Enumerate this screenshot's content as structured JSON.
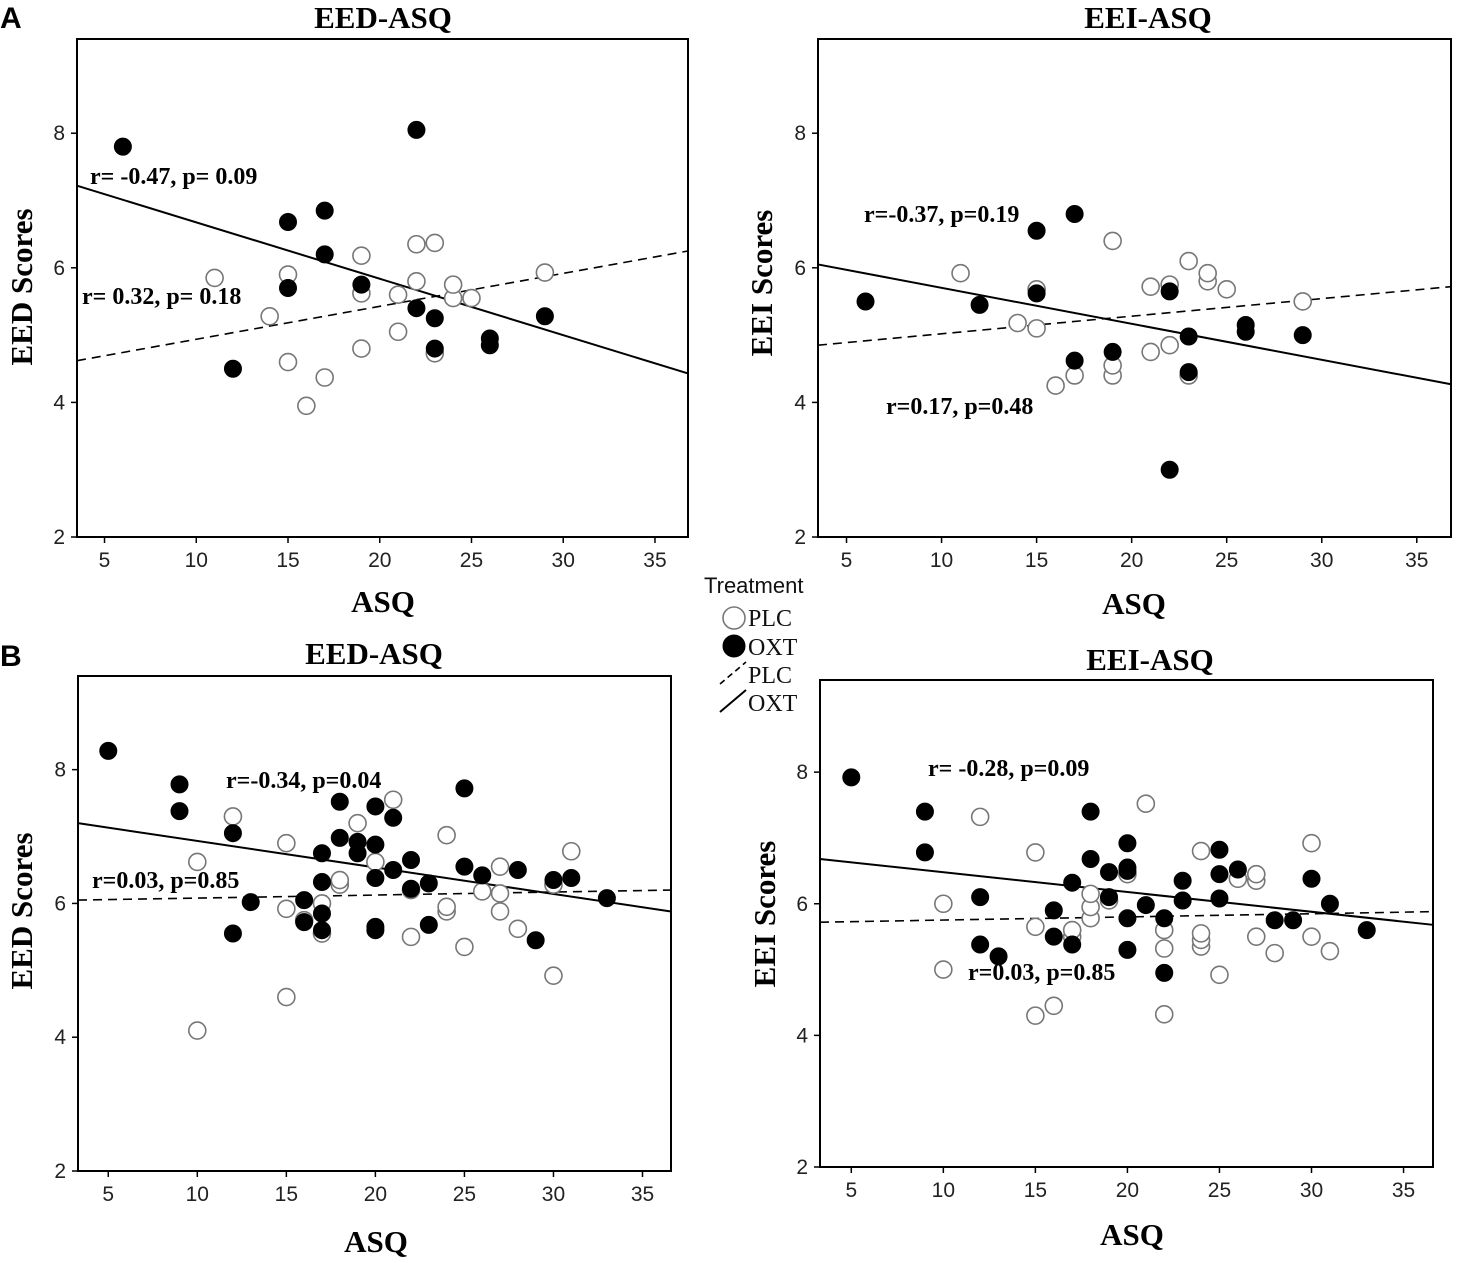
{
  "legend": {
    "title": "Treatment",
    "items": [
      {
        "label": "PLC",
        "kind": "open-circle"
      },
      {
        "label": "OXT",
        "kind": "filled-circle"
      },
      {
        "label": "PLC",
        "kind": "dashed-line"
      },
      {
        "label": "OXT",
        "kind": "solid-line"
      }
    ]
  },
  "colors": {
    "plc_fill": "#ffffff",
    "plc_stroke": "#777777",
    "oxt_fill": "#000000",
    "line": "#000000"
  },
  "chart_data": [
    {
      "id": "A-left",
      "panel_letter": "A",
      "type": "scatter",
      "title": "EED-ASQ",
      "xlabel": "ASQ",
      "ylabel": "EED Scores",
      "xlim": [
        3.5,
        36.8
      ],
      "ylim": [
        2,
        9.4
      ],
      "xticks": [
        5,
        10,
        15,
        20,
        25,
        30,
        35
      ],
      "yticks": [
        2,
        4,
        6,
        8
      ],
      "series": [
        {
          "name": "PLC",
          "points": [
            [
              11,
              5.85
            ],
            [
              14,
              5.28
            ],
            [
              15,
              4.6
            ],
            [
              15,
              5.9
            ],
            [
              16,
              3.95
            ],
            [
              17,
              4.37
            ],
            [
              19,
              4.8
            ],
            [
              19,
              5.62
            ],
            [
              19,
              6.18
            ],
            [
              21,
              5.05
            ],
            [
              21,
              5.6
            ],
            [
              22,
              5.8
            ],
            [
              22,
              6.35
            ],
            [
              23,
              4.73
            ],
            [
              23,
              6.37
            ],
            [
              24,
              5.55
            ],
            [
              24,
              5.75
            ],
            [
              25,
              5.55
            ],
            [
              29,
              5.93
            ]
          ]
        },
        {
          "name": "OXT",
          "points": [
            [
              6,
              7.8
            ],
            [
              12,
              4.5
            ],
            [
              15,
              5.7
            ],
            [
              15,
              6.68
            ],
            [
              17,
              6.2
            ],
            [
              17,
              6.85
            ],
            [
              19,
              5.75
            ],
            [
              22,
              5.4
            ],
            [
              22,
              8.05
            ],
            [
              23,
              5.25
            ],
            [
              23,
              4.8
            ],
            [
              26,
              4.85
            ],
            [
              26,
              4.95
            ],
            [
              29,
              5.28
            ]
          ]
        }
      ],
      "fits": [
        {
          "name": "OXT",
          "style": "solid",
          "x": [
            3.5,
            36.8
          ],
          "y": [
            7.22,
            4.43
          ]
        },
        {
          "name": "PLC",
          "style": "dashed",
          "x": [
            3.5,
            36.8
          ],
          "y": [
            4.62,
            6.25
          ]
        }
      ],
      "annotations": [
        "r= -0.47, p= 0.09",
        "r= 0.32, p= 0.18"
      ]
    },
    {
      "id": "A-right",
      "panel_letter": "",
      "type": "scatter",
      "title": "EEI-ASQ",
      "xlabel": "ASQ",
      "ylabel": "EEI Scores",
      "xlim": [
        3.5,
        36.8
      ],
      "ylim": [
        2,
        9.4
      ],
      "xticks": [
        5,
        10,
        15,
        20,
        25,
        30,
        35
      ],
      "yticks": [
        2,
        4,
        6,
        8
      ],
      "series": [
        {
          "name": "PLC",
          "points": [
            [
              11,
              5.92
            ],
            [
              14,
              5.18
            ],
            [
              15,
              5.1
            ],
            [
              15,
              5.68
            ],
            [
              16,
              4.25
            ],
            [
              17,
              4.4
            ],
            [
              19,
              4.4
            ],
            [
              19,
              4.55
            ],
            [
              19,
              6.4
            ],
            [
              21,
              5.72
            ],
            [
              21,
              4.75
            ],
            [
              22,
              4.85
            ],
            [
              22,
              5.75
            ],
            [
              23,
              4.4
            ],
            [
              23,
              6.1
            ],
            [
              24,
              5.8
            ],
            [
              24,
              5.92
            ],
            [
              25,
              5.68
            ],
            [
              29,
              5.5
            ]
          ]
        },
        {
          "name": "OXT",
          "points": [
            [
              6,
              5.5
            ],
            [
              12,
              5.45
            ],
            [
              15,
              5.62
            ],
            [
              15,
              6.55
            ],
            [
              17,
              6.8
            ],
            [
              17,
              4.62
            ],
            [
              19,
              4.75
            ],
            [
              22,
              3.0
            ],
            [
              22,
              5.65
            ],
            [
              23,
              4.98
            ],
            [
              23,
              4.45
            ],
            [
              26,
              5.05
            ],
            [
              26,
              5.15
            ],
            [
              29,
              5.0
            ]
          ]
        }
      ],
      "fits": [
        {
          "name": "OXT",
          "style": "solid",
          "x": [
            3.5,
            36.8
          ],
          "y": [
            6.05,
            4.27
          ]
        },
        {
          "name": "PLC",
          "style": "dashed",
          "x": [
            3.5,
            36.8
          ],
          "y": [
            4.85,
            5.72
          ]
        }
      ],
      "annotations": [
        "r=-0.37, p=0.19",
        "r=0.17, p=0.48"
      ]
    },
    {
      "id": "B-left",
      "panel_letter": "B",
      "type": "scatter",
      "title": "EED-ASQ",
      "xlabel": "ASQ",
      "ylabel": "EED Scores",
      "xlim": [
        3.3,
        36.6
      ],
      "ylim": [
        2,
        9.4
      ],
      "xticks": [
        5,
        10,
        15,
        20,
        25,
        30,
        35
      ],
      "yticks": [
        2,
        4,
        6,
        8
      ],
      "series": [
        {
          "name": "PLC",
          "points": [
            [
              10,
              4.1
            ],
            [
              10,
              6.62
            ],
            [
              12,
              7.3
            ],
            [
              15,
              4.6
            ],
            [
              15,
              5.92
            ],
            [
              15,
              6.9
            ],
            [
              16,
              5.75
            ],
            [
              17,
              5.55
            ],
            [
              17,
              6.0
            ],
            [
              18,
              6.28
            ],
            [
              18,
              6.35
            ],
            [
              19,
              7.2
            ],
            [
              20,
              6.62
            ],
            [
              21,
              7.55
            ],
            [
              22,
              5.5
            ],
            [
              22,
              6.2
            ],
            [
              24,
              5.88
            ],
            [
              24,
              5.95
            ],
            [
              24,
              7.02
            ],
            [
              25,
              5.35
            ],
            [
              26,
              6.18
            ],
            [
              27,
              5.88
            ],
            [
              27,
              6.15
            ],
            [
              27,
              6.55
            ],
            [
              28,
              5.62
            ],
            [
              30,
              4.92
            ],
            [
              30,
              6.28
            ],
            [
              31,
              6.78
            ]
          ]
        },
        {
          "name": "OXT",
          "points": [
            [
              5,
              8.28
            ],
            [
              9,
              7.38
            ],
            [
              9,
              7.78
            ],
            [
              12,
              5.55
            ],
            [
              12,
              7.05
            ],
            [
              13,
              6.02
            ],
            [
              16,
              5.72
            ],
            [
              16,
              6.05
            ],
            [
              17,
              5.6
            ],
            [
              17,
              5.85
            ],
            [
              17,
              6.32
            ],
            [
              17,
              6.75
            ],
            [
              18,
              6.98
            ],
            [
              18,
              7.52
            ],
            [
              19,
              6.75
            ],
            [
              19,
              6.92
            ],
            [
              20,
              5.6
            ],
            [
              20,
              5.65
            ],
            [
              20,
              6.38
            ],
            [
              20,
              6.88
            ],
            [
              20,
              7.45
            ],
            [
              21,
              6.5
            ],
            [
              21,
              7.28
            ],
            [
              22,
              6.22
            ],
            [
              22,
              6.65
            ],
            [
              23,
              5.68
            ],
            [
              23,
              6.3
            ],
            [
              25,
              6.55
            ],
            [
              25,
              7.72
            ],
            [
              26,
              6.42
            ],
            [
              28,
              6.5
            ],
            [
              29,
              5.45
            ],
            [
              30,
              6.35
            ],
            [
              31,
              6.38
            ],
            [
              33,
              6.08
            ]
          ]
        }
      ],
      "fits": [
        {
          "name": "OXT",
          "style": "solid",
          "x": [
            3.3,
            36.6
          ],
          "y": [
            7.2,
            5.88
          ]
        },
        {
          "name": "PLC",
          "style": "dashed",
          "x": [
            3.3,
            36.6
          ],
          "y": [
            6.05,
            6.2
          ]
        }
      ],
      "annotations": [
        "r=-0.34, p=0.04",
        "r=0.03, p=0.85"
      ]
    },
    {
      "id": "B-right",
      "panel_letter": "",
      "type": "scatter",
      "title": "EEI-ASQ",
      "xlabel": "ASQ",
      "ylabel": "EEI Scores",
      "xlim": [
        3.3,
        36.6
      ],
      "ylim": [
        2,
        9.4
      ],
      "xticks": [
        5,
        10,
        15,
        20,
        25,
        30,
        35
      ],
      "yticks": [
        2,
        4,
        6,
        8
      ],
      "series": [
        {
          "name": "PLC",
          "points": [
            [
              10,
              5.0
            ],
            [
              10,
              6.0
            ],
            [
              12,
              7.32
            ],
            [
              15,
              4.3
            ],
            [
              15,
              5.65
            ],
            [
              15,
              6.78
            ],
            [
              16,
              4.45
            ],
            [
              17,
              5.5
            ],
            [
              17,
              5.6
            ],
            [
              18,
              5.78
            ],
            [
              18,
              5.95
            ],
            [
              18,
              6.15
            ],
            [
              19,
              6.05
            ],
            [
              20,
              6.45
            ],
            [
              21,
              7.52
            ],
            [
              22,
              4.32
            ],
            [
              22,
              5.32
            ],
            [
              22,
              5.6
            ],
            [
              24,
              5.35
            ],
            [
              24,
              5.45
            ],
            [
              24,
              5.55
            ],
            [
              24,
              6.8
            ],
            [
              25,
              4.92
            ],
            [
              26,
              6.38
            ],
            [
              27,
              5.5
            ],
            [
              27,
              6.35
            ],
            [
              27,
              6.45
            ],
            [
              28,
              5.25
            ],
            [
              30,
              5.5
            ],
            [
              30,
              6.92
            ],
            [
              31,
              5.28
            ]
          ]
        },
        {
          "name": "OXT",
          "points": [
            [
              5,
              7.92
            ],
            [
              9,
              6.78
            ],
            [
              9,
              7.4
            ],
            [
              12,
              5.38
            ],
            [
              12,
              6.1
            ],
            [
              13,
              5.2
            ],
            [
              16,
              5.5
            ],
            [
              16,
              5.9
            ],
            [
              17,
              5.38
            ],
            [
              17,
              6.32
            ],
            [
              18,
              6.68
            ],
            [
              18,
              7.4
            ],
            [
              19,
              6.1
            ],
            [
              19,
              6.48
            ],
            [
              20,
              5.3
            ],
            [
              20,
              5.78
            ],
            [
              20,
              6.5
            ],
            [
              20,
              6.55
            ],
            [
              20,
              6.92
            ],
            [
              21,
              5.98
            ],
            [
              22,
              4.95
            ],
            [
              22,
              5.78
            ],
            [
              23,
              6.05
            ],
            [
              23,
              6.35
            ],
            [
              25,
              6.08
            ],
            [
              25,
              6.45
            ],
            [
              25,
              6.82
            ],
            [
              26,
              6.52
            ],
            [
              28,
              5.75
            ],
            [
              29,
              5.75
            ],
            [
              30,
              6.38
            ],
            [
              31,
              6.0
            ],
            [
              33,
              5.6
            ]
          ]
        }
      ],
      "fits": [
        {
          "name": "OXT",
          "style": "solid",
          "x": [
            3.3,
            36.6
          ],
          "y": [
            6.68,
            5.68
          ]
        },
        {
          "name": "PLC",
          "style": "dashed",
          "x": [
            3.3,
            36.6
          ],
          "y": [
            5.72,
            5.88
          ]
        }
      ],
      "annotations": [
        "r= -0.28, p=0.09",
        "r=0.03, p=0.85"
      ]
    }
  ]
}
